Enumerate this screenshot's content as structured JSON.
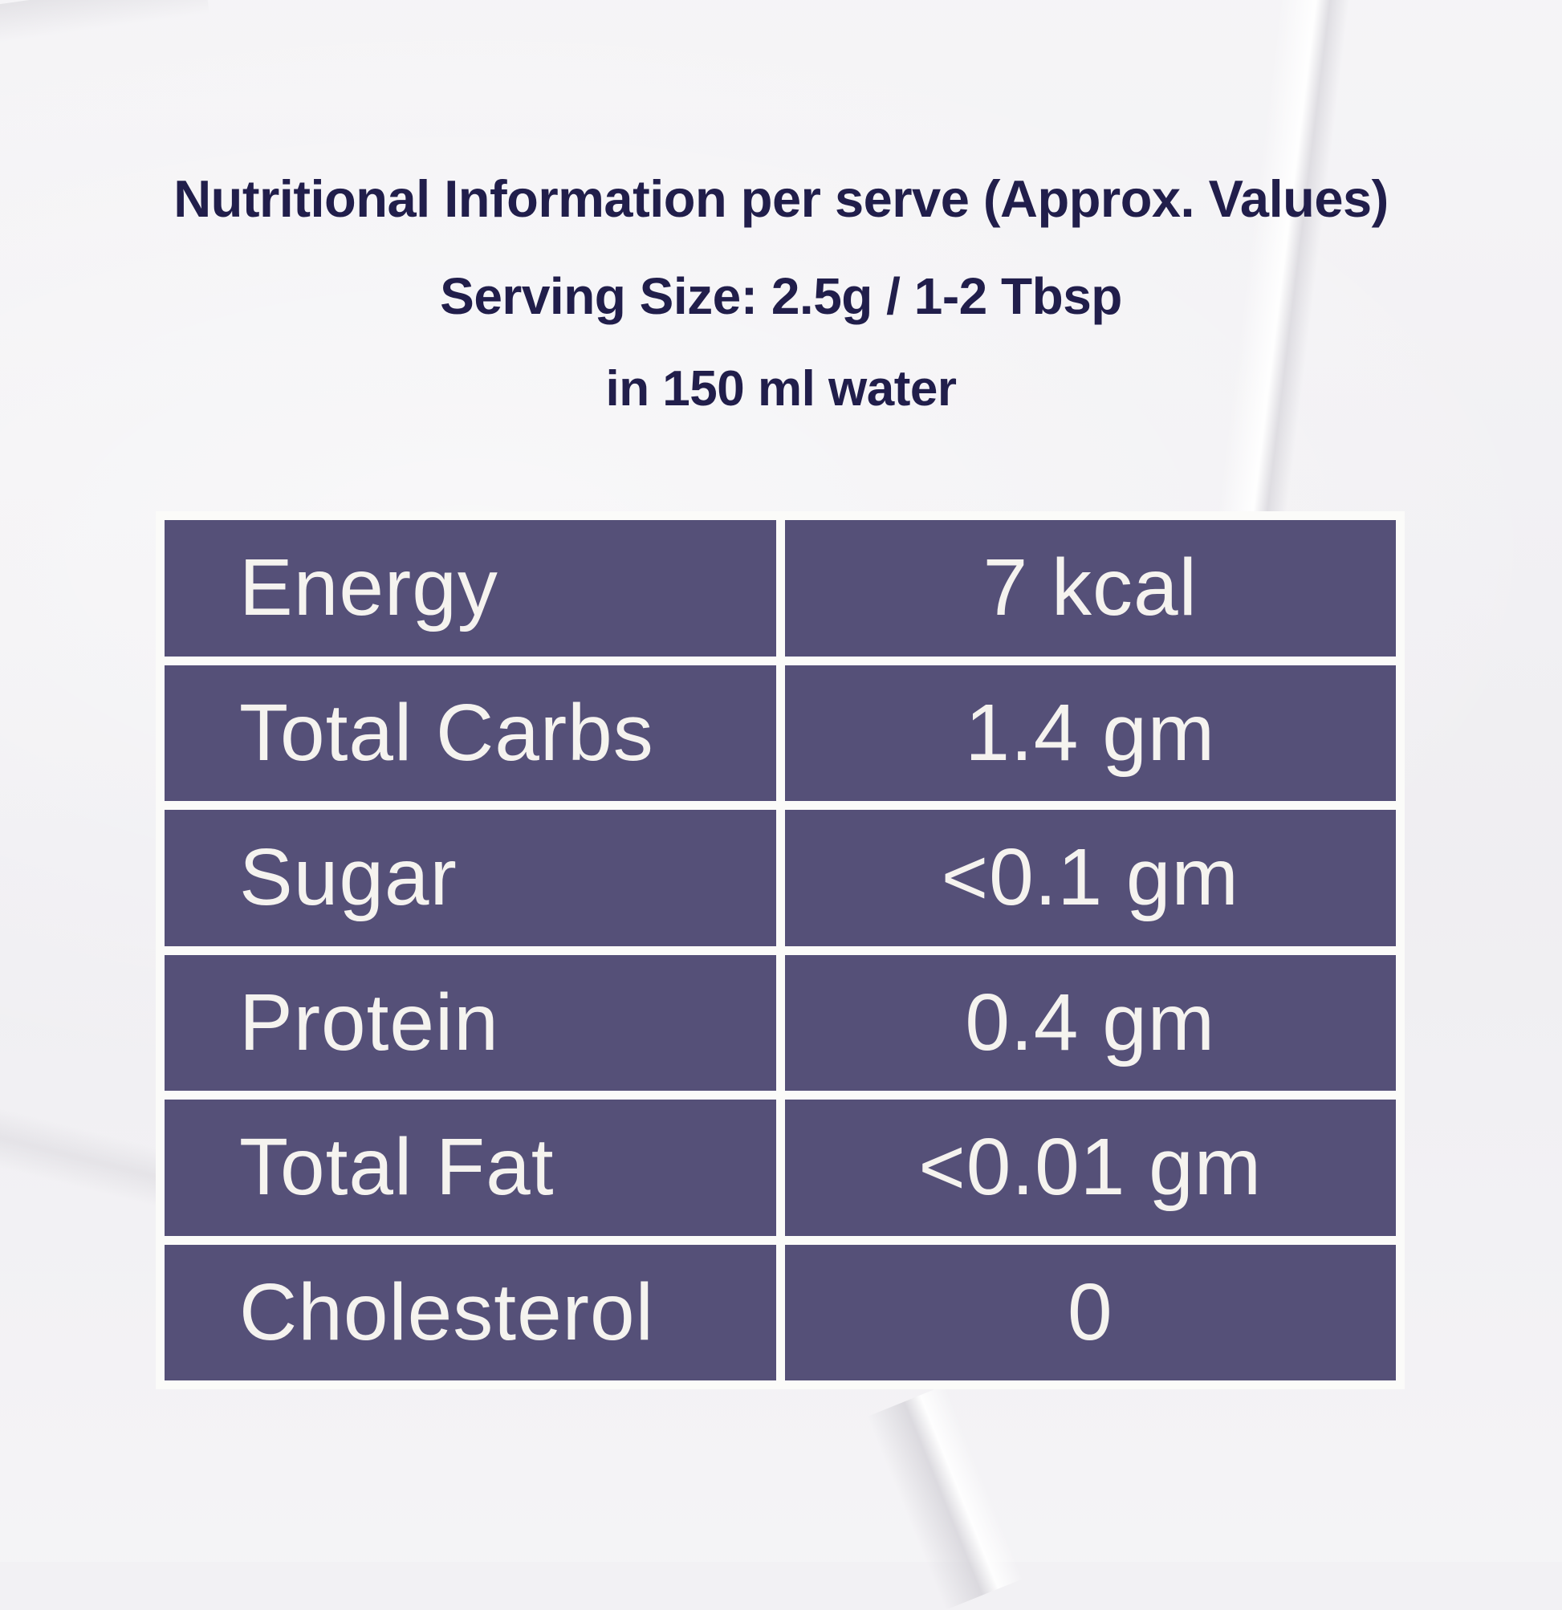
{
  "colors": {
    "background": "#f2f1f4",
    "table_frame": "#fbfbf9",
    "cell_background": "#555078",
    "cell_text": "#f5f3ef",
    "heading_text": "#211e4b"
  },
  "header": {
    "line1": "Nutritional Information per serve (Approx. Values)",
    "line2": "Serving Size: 2.5g / 1-2 Tbsp",
    "line3": "in 150 ml water"
  },
  "table": {
    "rows": [
      {
        "label": "Energy",
        "value": "7 kcal"
      },
      {
        "label": "Total Carbs",
        "value": "1.4 gm"
      },
      {
        "label": "Sugar",
        "value": "<0.1 gm"
      },
      {
        "label": "Protein",
        "value": "0.4 gm"
      },
      {
        "label": "Total Fat",
        "value": "<0.01 gm"
      },
      {
        "label": "Cholesterol",
        "value": "0"
      }
    ]
  }
}
